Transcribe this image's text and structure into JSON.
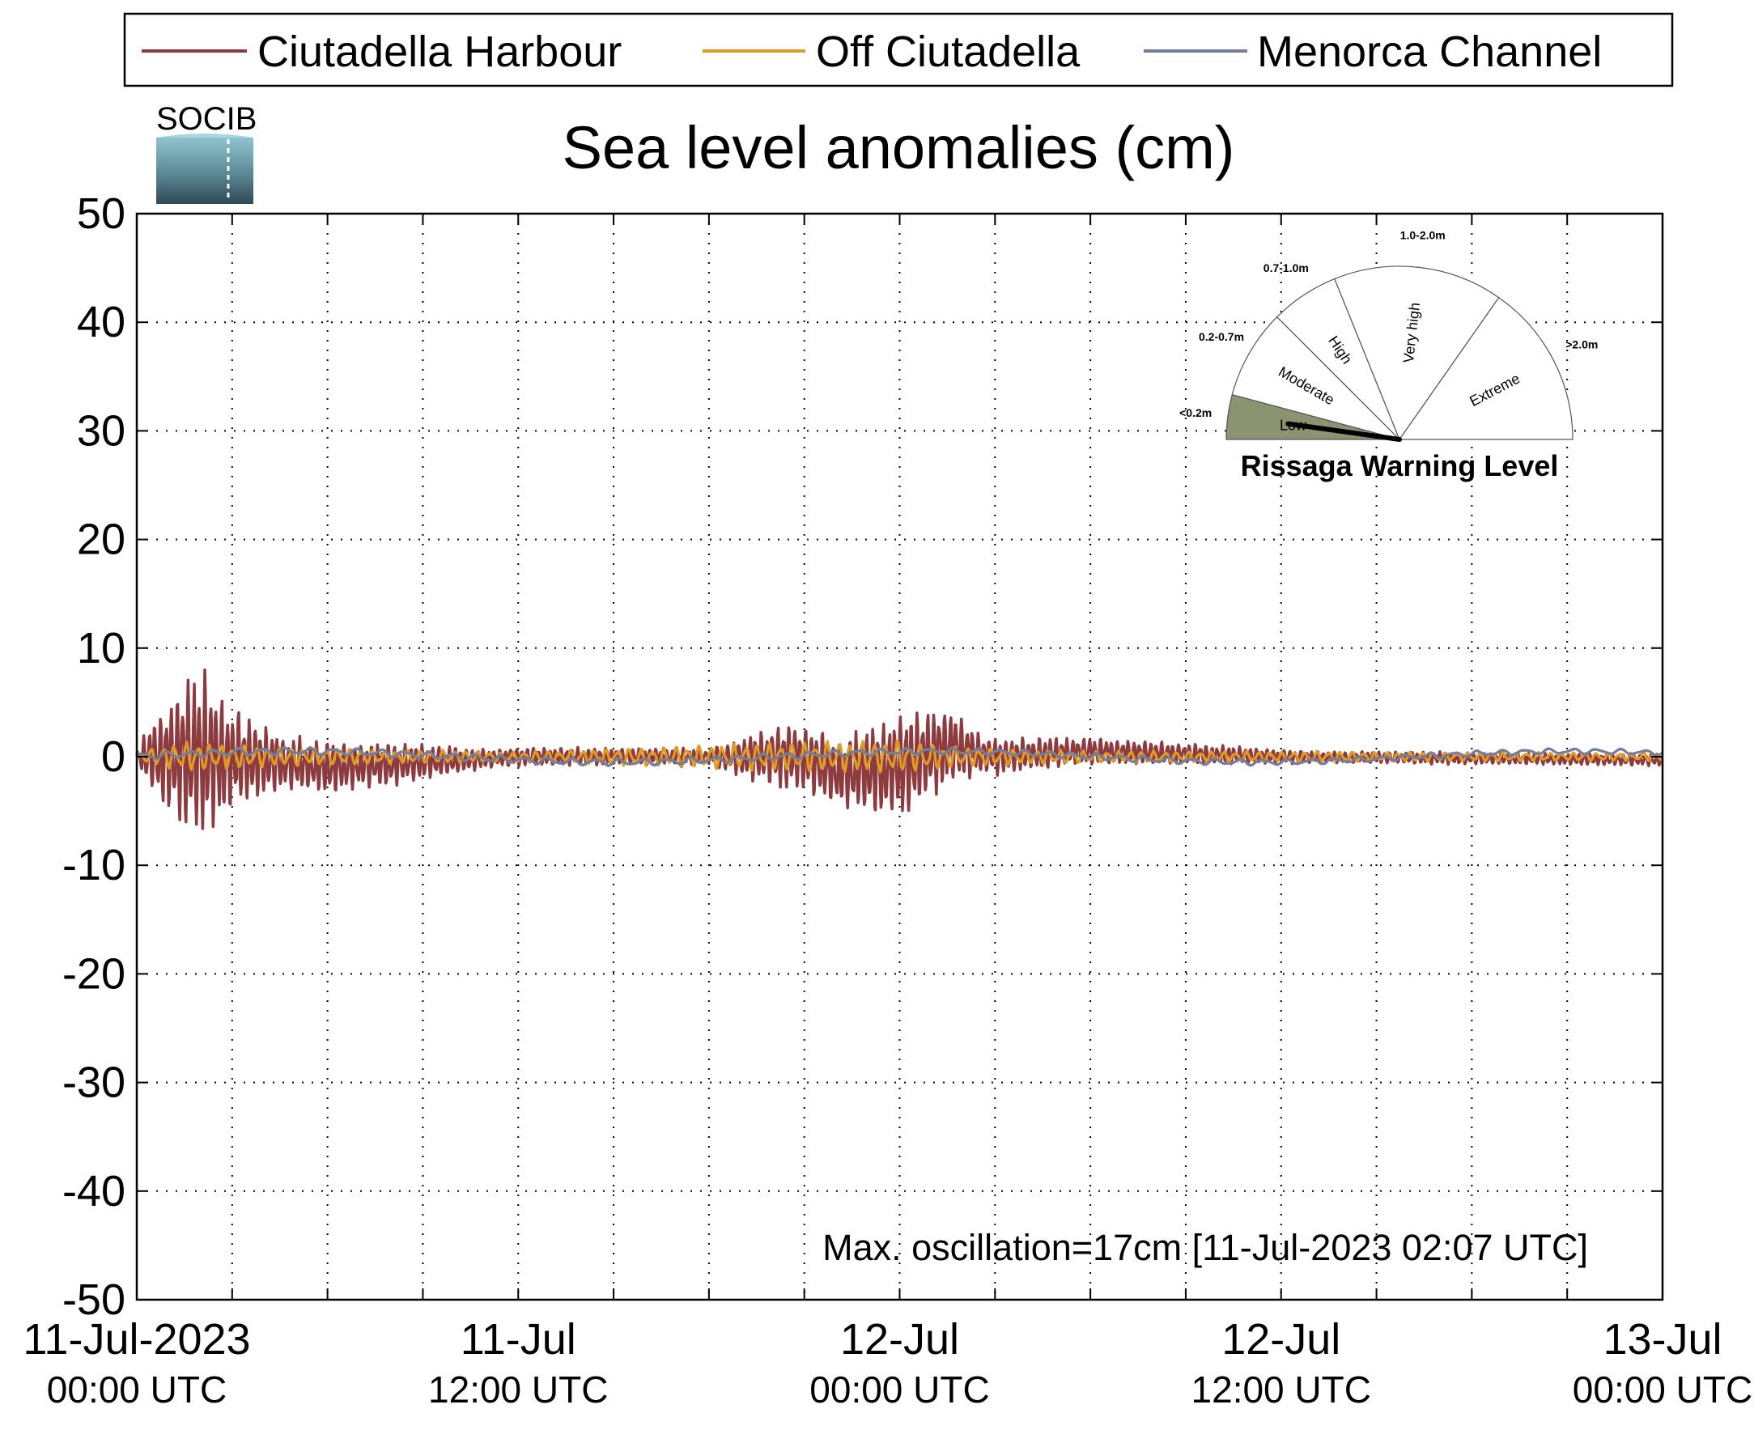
{
  "chart_data": {
    "type": "line",
    "title": "Sea level anomalies (cm)",
    "ylim": [
      -50,
      50
    ],
    "y_ticks": [
      -50,
      -40,
      -30,
      -20,
      -10,
      0,
      10,
      20,
      30,
      40,
      50
    ],
    "x_start": "2023-07-11T00:00Z",
    "x_end": "2023-07-13T00:00Z",
    "x_ticks": [
      {
        "t": "2023-07-11T00:00Z",
        "line1": "11-Jul-2023",
        "line2": "00:00 UTC"
      },
      {
        "t": "2023-07-11T12:00Z",
        "line1": "11-Jul",
        "line2": "12:00 UTC"
      },
      {
        "t": "2023-07-12T00:00Z",
        "line1": "12-Jul",
        "line2": "00:00 UTC"
      },
      {
        "t": "2023-07-12T12:00Z",
        "line1": "12-Jul",
        "line2": "12:00 UTC"
      },
      {
        "t": "2023-07-13T00:00Z",
        "line1": "13-Jul",
        "line2": "00:00 UTC"
      }
    ],
    "grid": true,
    "legend_position": "top",
    "series": [
      {
        "name": "Ciutadella Harbour",
        "color": "#8e3b3f",
        "envelope_note": "oscillation amplitude envelope (cm) vs time",
        "envelope": [
          {
            "t": "2023-07-11T00:00Z",
            "amp": 0.5
          },
          {
            "t": "2023-07-11T00:20Z",
            "amp": 3
          },
          {
            "t": "2023-07-11T01:00Z",
            "amp": 6
          },
          {
            "t": "2023-07-11T01:45Z",
            "amp": 8.5
          },
          {
            "t": "2023-07-11T02:07Z",
            "amp": 8.5
          },
          {
            "t": "2023-07-11T03:00Z",
            "amp": 5
          },
          {
            "t": "2023-07-11T04:30Z",
            "amp": 3
          },
          {
            "t": "2023-07-11T06:00Z",
            "amp": 2.5
          },
          {
            "t": "2023-07-11T08:00Z",
            "amp": 2.2
          },
          {
            "t": "2023-07-11T11:00Z",
            "amp": 1
          },
          {
            "t": "2023-07-11T18:00Z",
            "amp": 0.8
          },
          {
            "t": "2023-07-11T19:00Z",
            "amp": 2
          },
          {
            "t": "2023-07-11T20:30Z",
            "amp": 3.5
          },
          {
            "t": "2023-07-11T22:00Z",
            "amp": 3.5
          },
          {
            "t": "2023-07-11T23:30Z",
            "amp": 5
          },
          {
            "t": "2023-07-12T00:10Z",
            "amp": 5.5
          },
          {
            "t": "2023-07-12T01:30Z",
            "amp": 4
          },
          {
            "t": "2023-07-12T02:30Z",
            "amp": 2
          },
          {
            "t": "2023-07-12T05:00Z",
            "amp": 1.5
          },
          {
            "t": "2023-07-12T08:00Z",
            "amp": 1.2
          },
          {
            "t": "2023-07-12T13:00Z",
            "amp": 0.6
          },
          {
            "t": "2023-07-13T00:00Z",
            "amp": 0.6
          }
        ],
        "baseline": [
          {
            "t": "2023-07-11T00:00Z",
            "v": 0
          },
          {
            "t": "2023-07-11T02:30Z",
            "v": 0
          },
          {
            "t": "2023-07-11T06:00Z",
            "v": -1
          },
          {
            "t": "2023-07-11T12:00Z",
            "v": 0
          },
          {
            "t": "2023-07-11T21:00Z",
            "v": 0
          },
          {
            "t": "2023-07-11T22:00Z",
            "v": -1.5
          },
          {
            "t": "2023-07-12T00:00Z",
            "v": -1
          },
          {
            "t": "2023-07-12T01:30Z",
            "v": 1
          },
          {
            "t": "2023-07-12T03:00Z",
            "v": 0
          },
          {
            "t": "2023-07-12T06:00Z",
            "v": 0.5
          },
          {
            "t": "2023-07-12T12:00Z",
            "v": 0
          },
          {
            "t": "2023-07-13T00:00Z",
            "v": -0.3
          }
        ]
      },
      {
        "name": "Off Ciutadella",
        "color": "#e09a25",
        "envelope": [
          {
            "t": "2023-07-11T00:00Z",
            "amp": 0.5
          },
          {
            "t": "2023-07-11T01:30Z",
            "amp": 1.5
          },
          {
            "t": "2023-07-11T04:00Z",
            "amp": 1
          },
          {
            "t": "2023-07-11T12:00Z",
            "amp": 0.5
          },
          {
            "t": "2023-07-11T21:00Z",
            "amp": 1.5
          },
          {
            "t": "2023-07-12T00:00Z",
            "amp": 1.6
          },
          {
            "t": "2023-07-12T02:00Z",
            "amp": 1
          },
          {
            "t": "2023-07-12T06:00Z",
            "amp": 0.6
          },
          {
            "t": "2023-07-13T00:00Z",
            "amp": 0.4
          }
        ]
      },
      {
        "name": "Menorca Channel",
        "color": "#767d9a",
        "envelope": [
          {
            "t": "2023-07-11T00:00Z",
            "amp": 0.4
          },
          {
            "t": "2023-07-11T12:00Z",
            "amp": 0.4
          },
          {
            "t": "2023-07-13T00:00Z",
            "amp": 0.3
          }
        ]
      }
    ],
    "annotation": {
      "text": "Max. oscillation=17cm [11-Jul-2023 02:07 UTC]",
      "color": "#8e3b3f"
    }
  },
  "logo": {
    "text": "SOCIB"
  },
  "gauge": {
    "title": "Rissaga Warning Level",
    "current_level": "Low",
    "segments": [
      {
        "label": "Low",
        "range": "<0.2m",
        "range_color": "#7a8a55",
        "fill": "#8a9470"
      },
      {
        "label": "Moderate",
        "range": "0.2-0.7m",
        "range_color": "#4a6a72",
        "fill": "#ffffff"
      },
      {
        "label": "High",
        "range": "0.7-1.0m",
        "range_color": "#f2d21a",
        "fill": "#ffffff"
      },
      {
        "label": "Very high",
        "range": "1.0-2.0m",
        "range_color": "#f08a18",
        "fill": "#ffffff"
      },
      {
        "label": "Extreme",
        "range": ">2.0m",
        "range_color": "#e01010",
        "fill": "#ffffff"
      }
    ]
  }
}
